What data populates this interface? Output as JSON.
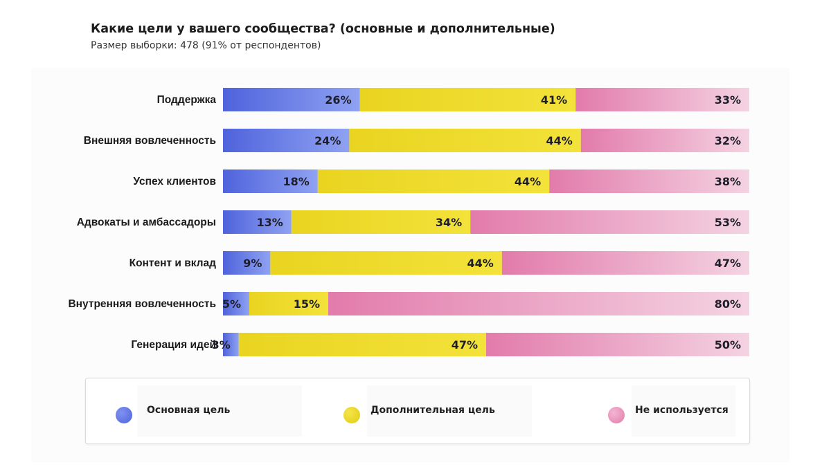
{
  "header": {
    "title": "Какие цели у вашего сообщества? (основные и дополнительные)",
    "subtitle": "Размер выборки: 478 (91% от респондентов)"
  },
  "chart_data": {
    "type": "bar",
    "orientation": "horizontal",
    "stacked": true,
    "normalized_percent": true,
    "title": "Какие цели у вашего сообщества? (основные и дополнительные)",
    "subtitle": "Размер выборки: 478 (91% от респондентов)",
    "categories": [
      "Поддержка",
      "Внешняя вовлеченность",
      "Успех клиентов",
      "Адвокаты и амбассадоры",
      "Контент и вклад",
      "Внутренняя вовлеченность",
      "Генерация идей"
    ],
    "series": [
      {
        "name": "Основная цель",
        "color": "#5a6fe0",
        "values": [
          26,
          24,
          18,
          13,
          9,
          5,
          3
        ]
      },
      {
        "name": "Дополнительная цель",
        "color": "#ecd824",
        "values": [
          41,
          44,
          44,
          34,
          44,
          15,
          47
        ]
      },
      {
        "name": "Не используется",
        "color": "#e37fae",
        "values": [
          33,
          32,
          38,
          53,
          47,
          80,
          50
        ]
      }
    ],
    "value_suffix": "%",
    "xlim": [
      0,
      100
    ],
    "legend_position": "bottom"
  },
  "legend": {
    "items": [
      {
        "label": "Основная цель",
        "color": "#5a6fe0"
      },
      {
        "label": "Дополнительная цель",
        "color": "#ecd824"
      },
      {
        "label": "Не используется",
        "color": "#e37fae"
      }
    ]
  }
}
